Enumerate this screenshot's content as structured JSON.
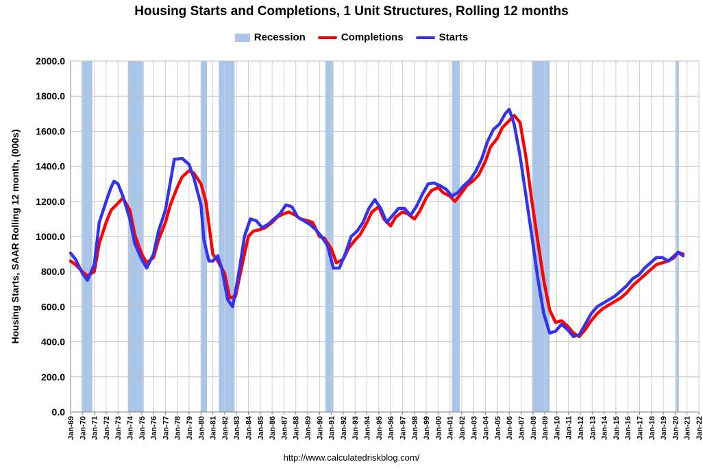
{
  "chart_data": {
    "type": "line",
    "title": "Housing Starts and Completions, 1 Unit Structures, Rolling 12 months",
    "ylabel": "Housing Starts, SAAR Rolling 12 month, (000s)",
    "xlabel": "",
    "ylim": [
      0,
      2000
    ],
    "y_ticks": [
      "0.0",
      "200.0",
      "400.0",
      "600.0",
      "800.0",
      "1000.0",
      "1200.0",
      "1400.0",
      "1600.0",
      "1800.0",
      "2000.0"
    ],
    "x_ticks": [
      "Jan-69",
      "Jan-70",
      "Jan-71",
      "Jan-72",
      "Jan-73",
      "Jan-74",
      "Jan-75",
      "Jan-76",
      "Jan-77",
      "Jan-78",
      "Jan-79",
      "Jan-80",
      "Jan-81",
      "Jan-82",
      "Jan-83",
      "Jan-84",
      "Jan-85",
      "Jan-86",
      "Jan-87",
      "Jan-88",
      "Jan-89",
      "Jan-90",
      "Jan-91",
      "Jan-92",
      "Jan-93",
      "Jan-94",
      "Jan-95",
      "Jan-96",
      "Jan-97",
      "Jan-98",
      "Jan-99",
      "Jan-00",
      "Jan-01",
      "Jan-02",
      "Jan-03",
      "Jan-04",
      "Jan-05",
      "Jan-06",
      "Jan-07",
      "Jan-08",
      "Jan-09",
      "Jan-10",
      "Jan-11",
      "Jan-12",
      "Jan-13",
      "Jan-14",
      "Jan-15",
      "Jan-16",
      "Jan-17",
      "Jan-18",
      "Jan-19",
      "Jan-20",
      "Jan-21",
      "Jan-22"
    ],
    "grid": true,
    "legend_position": "top-center",
    "legend": [
      "Recession",
      "Completions",
      "Starts"
    ],
    "colors": {
      "recession": "#a9c6ea",
      "completions": "#ff0000",
      "starts": "#3333ee"
    },
    "recessions": [
      [
        "1969-12",
        "1970-11"
      ],
      [
        "1973-11",
        "1975-03"
      ],
      [
        "1980-01",
        "1980-07"
      ],
      [
        "1981-07",
        "1982-11"
      ],
      [
        "1990-07",
        "1991-03"
      ],
      [
        "2001-03",
        "2001-11"
      ],
      [
        "2007-12",
        "2009-06"
      ],
      [
        "2020-02",
        "2020-04"
      ]
    ],
    "series": [
      {
        "name": "Starts",
        "points": [
          [
            "1969-01",
            905
          ],
          [
            "1969-06",
            870
          ],
          [
            "1970-01",
            790
          ],
          [
            "1970-06",
            750
          ],
          [
            "1971-01",
            840
          ],
          [
            "1971-06",
            1080
          ],
          [
            "1972-01",
            1200
          ],
          [
            "1972-06",
            1280
          ],
          [
            "1972-09",
            1315
          ],
          [
            "1973-01",
            1300
          ],
          [
            "1973-06",
            1230
          ],
          [
            "1974-01",
            1100
          ],
          [
            "1974-06",
            960
          ],
          [
            "1975-01",
            870
          ],
          [
            "1975-06",
            820
          ],
          [
            "1976-01",
            900
          ],
          [
            "1976-06",
            1030
          ],
          [
            "1977-01",
            1150
          ],
          [
            "1977-06",
            1310
          ],
          [
            "1977-10",
            1440
          ],
          [
            "1978-06",
            1445
          ],
          [
            "1979-01",
            1410
          ],
          [
            "1979-06",
            1330
          ],
          [
            "1980-01",
            1180
          ],
          [
            "1980-04",
            980
          ],
          [
            "1980-09",
            860
          ],
          [
            "1981-01",
            860
          ],
          [
            "1981-06",
            890
          ],
          [
            "1981-10",
            820
          ],
          [
            "1982-04",
            640
          ],
          [
            "1982-09",
            600
          ],
          [
            "1983-03",
            780
          ],
          [
            "1983-09",
            1000
          ],
          [
            "1984-03",
            1100
          ],
          [
            "1984-09",
            1090
          ],
          [
            "1985-03",
            1050
          ],
          [
            "1985-09",
            1070
          ],
          [
            "1986-03",
            1100
          ],
          [
            "1986-09",
            1130
          ],
          [
            "1987-03",
            1180
          ],
          [
            "1987-09",
            1170
          ],
          [
            "1988-03",
            1110
          ],
          [
            "1988-09",
            1090
          ],
          [
            "1989-03",
            1070
          ],
          [
            "1989-09",
            1040
          ],
          [
            "1990-03",
            1000
          ],
          [
            "1990-09",
            950
          ],
          [
            "1991-03",
            820
          ],
          [
            "1991-09",
            820
          ],
          [
            "1992-03",
            900
          ],
          [
            "1992-09",
            1000
          ],
          [
            "1993-03",
            1030
          ],
          [
            "1993-09",
            1080
          ],
          [
            "1994-03",
            1160
          ],
          [
            "1994-09",
            1210
          ],
          [
            "1995-03",
            1160
          ],
          [
            "1995-09",
            1080
          ],
          [
            "1996-03",
            1120
          ],
          [
            "1996-09",
            1160
          ],
          [
            "1997-03",
            1160
          ],
          [
            "1997-09",
            1120
          ],
          [
            "1998-03",
            1170
          ],
          [
            "1998-09",
            1240
          ],
          [
            "1999-03",
            1300
          ],
          [
            "1999-09",
            1305
          ],
          [
            "2000-03",
            1290
          ],
          [
            "2000-09",
            1270
          ],
          [
            "2001-03",
            1230
          ],
          [
            "2001-09",
            1250
          ],
          [
            "2002-03",
            1290
          ],
          [
            "2002-09",
            1320
          ],
          [
            "2003-03",
            1370
          ],
          [
            "2003-09",
            1440
          ],
          [
            "2004-03",
            1540
          ],
          [
            "2004-09",
            1610
          ],
          [
            "2005-03",
            1640
          ],
          [
            "2005-09",
            1700
          ],
          [
            "2006-01",
            1725
          ],
          [
            "2006-06",
            1640
          ],
          [
            "2006-12",
            1460
          ],
          [
            "2007-06",
            1230
          ],
          [
            "2007-12",
            1000
          ],
          [
            "2008-06",
            760
          ],
          [
            "2008-12",
            560
          ],
          [
            "2009-06",
            450
          ],
          [
            "2009-12",
            460
          ],
          [
            "2010-06",
            500
          ],
          [
            "2010-12",
            470
          ],
          [
            "2011-06",
            430
          ],
          [
            "2011-12",
            440
          ],
          [
            "2012-06",
            500
          ],
          [
            "2012-12",
            560
          ],
          [
            "2013-06",
            600
          ],
          [
            "2013-12",
            620
          ],
          [
            "2014-06",
            640
          ],
          [
            "2014-12",
            660
          ],
          [
            "2015-06",
            690
          ],
          [
            "2015-12",
            720
          ],
          [
            "2016-06",
            760
          ],
          [
            "2016-12",
            780
          ],
          [
            "2017-06",
            820
          ],
          [
            "2017-12",
            850
          ],
          [
            "2018-06",
            880
          ],
          [
            "2018-12",
            880
          ],
          [
            "2019-06",
            860
          ],
          [
            "2019-12",
            890
          ],
          [
            "2020-04",
            910
          ],
          [
            "2020-09",
            890
          ]
        ]
      },
      {
        "name": "Completions",
        "points": [
          [
            "1969-01",
            860
          ],
          [
            "1969-06",
            840
          ],
          [
            "1970-01",
            800
          ],
          [
            "1970-06",
            775
          ],
          [
            "1971-01",
            800
          ],
          [
            "1971-06",
            960
          ],
          [
            "1972-01",
            1080
          ],
          [
            "1972-06",
            1150
          ],
          [
            "1973-01",
            1190
          ],
          [
            "1973-06",
            1220
          ],
          [
            "1974-01",
            1150
          ],
          [
            "1974-06",
            1010
          ],
          [
            "1975-01",
            900
          ],
          [
            "1975-06",
            850
          ],
          [
            "1976-01",
            880
          ],
          [
            "1976-06",
            980
          ],
          [
            "1977-01",
            1080
          ],
          [
            "1977-06",
            1180
          ],
          [
            "1978-01",
            1280
          ],
          [
            "1978-06",
            1340
          ],
          [
            "1979-01",
            1375
          ],
          [
            "1979-06",
            1360
          ],
          [
            "1980-01",
            1300
          ],
          [
            "1980-06",
            1200
          ],
          [
            "1981-01",
            900
          ],
          [
            "1981-06",
            860
          ],
          [
            "1982-01",
            790
          ],
          [
            "1982-06",
            650
          ],
          [
            "1982-12",
            660
          ],
          [
            "1983-06",
            820
          ],
          [
            "1984-01",
            1000
          ],
          [
            "1984-06",
            1030
          ],
          [
            "1985-01",
            1040
          ],
          [
            "1985-06",
            1050
          ],
          [
            "1986-01",
            1080
          ],
          [
            "1986-06",
            1110
          ],
          [
            "1987-01",
            1130
          ],
          [
            "1987-06",
            1140
          ],
          [
            "1988-01",
            1120
          ],
          [
            "1988-06",
            1100
          ],
          [
            "1989-01",
            1090
          ],
          [
            "1989-06",
            1080
          ],
          [
            "1990-01",
            1000
          ],
          [
            "1990-06",
            990
          ],
          [
            "1991-01",
            930
          ],
          [
            "1991-06",
            850
          ],
          [
            "1992-01",
            870
          ],
          [
            "1992-06",
            930
          ],
          [
            "1993-01",
            980
          ],
          [
            "1993-06",
            1010
          ],
          [
            "1994-01",
            1080
          ],
          [
            "1994-06",
            1140
          ],
          [
            "1995-01",
            1170
          ],
          [
            "1995-06",
            1100
          ],
          [
            "1996-01",
            1060
          ],
          [
            "1996-06",
            1110
          ],
          [
            "1997-01",
            1140
          ],
          [
            "1997-06",
            1130
          ],
          [
            "1998-01",
            1100
          ],
          [
            "1998-06",
            1140
          ],
          [
            "1999-01",
            1220
          ],
          [
            "1999-06",
            1260
          ],
          [
            "2000-01",
            1280
          ],
          [
            "2000-06",
            1250
          ],
          [
            "2001-01",
            1230
          ],
          [
            "2001-06",
            1200
          ],
          [
            "2002-01",
            1250
          ],
          [
            "2002-06",
            1290
          ],
          [
            "2003-01",
            1320
          ],
          [
            "2003-06",
            1350
          ],
          [
            "2004-01",
            1430
          ],
          [
            "2004-06",
            1510
          ],
          [
            "2005-01",
            1560
          ],
          [
            "2005-06",
            1620
          ],
          [
            "2006-01",
            1660
          ],
          [
            "2006-06",
            1690
          ],
          [
            "2006-12",
            1650
          ],
          [
            "2007-06",
            1450
          ],
          [
            "2007-12",
            1200
          ],
          [
            "2008-06",
            970
          ],
          [
            "2008-12",
            750
          ],
          [
            "2009-06",
            580
          ],
          [
            "2009-12",
            510
          ],
          [
            "2010-06",
            520
          ],
          [
            "2010-12",
            490
          ],
          [
            "2011-06",
            450
          ],
          [
            "2011-12",
            430
          ],
          [
            "2012-06",
            470
          ],
          [
            "2012-12",
            520
          ],
          [
            "2013-06",
            560
          ],
          [
            "2013-12",
            590
          ],
          [
            "2014-06",
            610
          ],
          [
            "2014-12",
            630
          ],
          [
            "2015-06",
            650
          ],
          [
            "2015-12",
            680
          ],
          [
            "2016-06",
            720
          ],
          [
            "2016-12",
            750
          ],
          [
            "2017-06",
            780
          ],
          [
            "2017-12",
            810
          ],
          [
            "2018-06",
            840
          ],
          [
            "2018-12",
            850
          ],
          [
            "2019-06",
            860
          ],
          [
            "2019-12",
            880
          ],
          [
            "2020-04",
            910
          ],
          [
            "2020-09",
            900
          ]
        ]
      }
    ]
  },
  "footer": {
    "source_url": "http://www.calculatedriskblog.com/"
  }
}
